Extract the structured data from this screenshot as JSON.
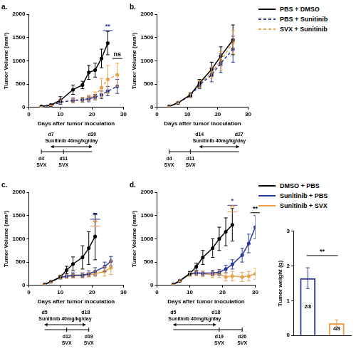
{
  "chart_data": [
    {
      "type": "line",
      "title": "a.",
      "x_label": "Days after tumor inoculation",
      "y_label": "Tumor Volume (mm³)",
      "x": [
        4,
        7,
        10,
        14,
        17,
        19,
        21,
        23,
        25,
        28
      ],
      "series": [
        {
          "name": "PBS + DMSO",
          "color": "#000000",
          "line_style": "solid",
          "marker": "circle",
          "values": [
            20,
            50,
            150,
            380,
            480,
            750,
            800,
            1050,
            1380,
            null
          ],
          "errors": [
            5,
            20,
            80,
            100,
            80,
            150,
            150,
            200,
            250,
            null
          ]
        },
        {
          "name": "PBS + Sunitinib",
          "color": "#2b3a9e",
          "line_style": "dashed",
          "marker": "circle",
          "values": [
            10,
            40,
            110,
            150,
            160,
            180,
            220,
            270,
            350,
            450
          ],
          "errors": [
            5,
            10,
            40,
            50,
            50,
            60,
            60,
            80,
            100,
            150
          ]
        },
        {
          "name": "SVX + Sunitinib",
          "color": "#e8a04a",
          "line_style": "dashed",
          "marker": "circle",
          "values": [
            10,
            40,
            120,
            140,
            170,
            200,
            250,
            420,
            600,
            700
          ],
          "errors": [
            5,
            10,
            40,
            40,
            50,
            60,
            80,
            200,
            300,
            250
          ]
        }
      ],
      "xlim": [
        0,
        30
      ],
      "xticks": [
        0,
        10,
        20,
        30
      ],
      "ylim": [
        0,
        2000
      ],
      "yticks": [
        0,
        500,
        1000,
        1500,
        2000
      ],
      "grid": false,
      "legend": "upper right",
      "annotations": [
        {
          "text": "**",
          "x": 25,
          "y": 1650,
          "color": "#2b3a9e"
        },
        {
          "text": "ns",
          "x": 28,
          "y": 1050,
          "color": "#000000"
        }
      ],
      "timeline": {
        "treatment": {
          "label": "Sunitinib 40mg/kg/day",
          "start": {
            "day": 7,
            "label": "d7"
          },
          "end": {
            "day": 20,
            "label": "d20"
          }
        },
        "doses": [
          {
            "day": 4,
            "label": "d4",
            "text": "SVX"
          },
          {
            "day": 11,
            "label": "d11",
            "text": "SVX"
          }
        ]
      }
    },
    {
      "type": "line",
      "title": "b.",
      "x_label": "Days after tumor inoculation",
      "y_label": "Tumor Volume (mm³)",
      "x": [
        4,
        7,
        11,
        14,
        18,
        21,
        25
      ],
      "series": [
        {
          "name": "PBS + DMSO",
          "color": "#000000",
          "line_style": "solid",
          "marker": "circle",
          "values": [
            20,
            100,
            270,
            520,
            820,
            1100,
            1450
          ],
          "errors": [
            5,
            20,
            40,
            80,
            150,
            200,
            320
          ]
        },
        {
          "name": "PBS + Sunitinib",
          "color": "#2b3a9e",
          "line_style": "dashed",
          "marker": "circle",
          "values": [
            20,
            100,
            250,
            480,
            700,
            950,
            1250
          ],
          "errors": [
            5,
            20,
            40,
            80,
            150,
            200,
            280
          ]
        },
        {
          "name": "SVX + Sunitinib",
          "color": "#e8a04a",
          "line_style": "dashed",
          "marker": "circle",
          "values": [
            20,
            100,
            250,
            500,
            750,
            1000,
            1400
          ],
          "errors": [
            5,
            20,
            40,
            80,
            120,
            200,
            250
          ]
        }
      ],
      "xlim": [
        0,
        30
      ],
      "xticks": [
        0,
        10,
        20,
        30
      ],
      "ylim": [
        0,
        2000
      ],
      "yticks": [
        0,
        500,
        1000,
        1500,
        2000
      ],
      "grid": false,
      "timeline": {
        "treatment": {
          "label": "Sunitinib 40mg/kg/day",
          "start": {
            "day": 14,
            "label": "d14"
          },
          "end": {
            "day": 27,
            "label": "d27"
          }
        },
        "doses": [
          {
            "day": 4,
            "label": "d4",
            "text": "SVX"
          },
          {
            "day": 11,
            "label": "d11",
            "text": "SVX"
          }
        ]
      }
    },
    {
      "type": "line",
      "title": "c.",
      "x_label": "Days after tumor inoculation",
      "y_label": "Tumor Volume (mm³)",
      "x": [
        5,
        7,
        10,
        12,
        14,
        17,
        19,
        21,
        24,
        26
      ],
      "series": [
        {
          "name": "DMSO + PBS",
          "color": "#000000",
          "line_style": "solid",
          "marker": "circle",
          "values": [
            20,
            80,
            180,
            330,
            460,
            600,
            800,
            1050,
            null,
            null
          ],
          "errors": [
            5,
            20,
            40,
            80,
            150,
            250,
            350,
            500,
            null,
            null
          ]
        },
        {
          "name": "Sunitinib + PBS",
          "color": "#2b3a9e",
          "line_style": "solid",
          "marker": "circle",
          "values": [
            20,
            80,
            170,
            200,
            220,
            220,
            250,
            300,
            400,
            520
          ],
          "errors": [
            5,
            20,
            30,
            40,
            50,
            50,
            60,
            80,
            100,
            100
          ]
        },
        {
          "name": "Sunitinib + SVX",
          "color": "#e8a04a",
          "line_style": "solid",
          "marker": "circle",
          "values": [
            20,
            80,
            170,
            190,
            200,
            210,
            230,
            250,
            300,
            380
          ],
          "errors": [
            5,
            20,
            30,
            40,
            40,
            50,
            50,
            60,
            100,
            150
          ]
        }
      ],
      "xlim": [
        0,
        30
      ],
      "xticks": [
        0,
        10,
        20,
        30
      ],
      "ylim": [
        0,
        2000
      ],
      "yticks": [
        0,
        500,
        1000,
        1500,
        2000
      ],
      "grid": false,
      "legend": "upper right",
      "annotations": [
        {
          "text": "**",
          "x": 21,
          "y": 1420,
          "color": "#2b3a9e"
        },
        {
          "text": "**",
          "x": 21,
          "y": 1270,
          "color": "#e8a04a"
        }
      ],
      "timeline": {
        "treatment": {
          "label": "Sunitinib 40mg/kg/day",
          "start": {
            "day": 5,
            "label": "d5"
          },
          "end": {
            "day": 18,
            "label": "d18"
          }
        },
        "doses": [
          {
            "day": 12,
            "label": "d12",
            "text": "SVX"
          },
          {
            "day": 19,
            "label": "d19",
            "text": "SVX"
          }
        ]
      }
    },
    {
      "type": "line",
      "title": "d.",
      "x_label": "Days after tumor inoculation",
      "y_label": "Tumor Volume (mm³)",
      "x": [
        5,
        7,
        10,
        12,
        14,
        17,
        19,
        21,
        23,
        26,
        28,
        30
      ],
      "series": [
        {
          "name": "DMSO + PBS",
          "color": "#000000",
          "line_style": "solid",
          "marker": "circle",
          "values": [
            20,
            100,
            250,
            400,
            600,
            800,
            1000,
            1150,
            1300,
            null,
            null,
            null
          ],
          "errors": [
            5,
            20,
            50,
            80,
            150,
            200,
            250,
            300,
            350,
            null,
            null,
            null
          ]
        },
        {
          "name": "Sunitinib + PBS",
          "color": "#2b3a9e",
          "line_style": "solid",
          "marker": "circle",
          "values": [
            20,
            100,
            250,
            270,
            260,
            270,
            280,
            350,
            450,
            650,
            900,
            1250
          ],
          "errors": [
            5,
            20,
            40,
            50,
            50,
            50,
            60,
            80,
            100,
            150,
            200,
            250
          ]
        },
        {
          "name": "Sunitinib + SVX",
          "color": "#e8a04a",
          "line_style": "solid",
          "marker": "circle",
          "values": [
            20,
            100,
            240,
            260,
            250,
            230,
            250,
            180,
            200,
            180,
            200,
            250
          ],
          "errors": [
            5,
            20,
            40,
            50,
            60,
            60,
            80,
            80,
            100,
            100,
            100,
            120
          ]
        }
      ],
      "xlim": [
        0,
        30
      ],
      "xticks": [
        0,
        10,
        20,
        30
      ],
      "ylim": [
        0,
        2000
      ],
      "yticks": [
        0,
        500,
        1000,
        1500,
        2000
      ],
      "grid": false,
      "annotations": [
        {
          "text": "*",
          "x": 23,
          "y": 1720,
          "color": "#2b3a9e"
        },
        {
          "text": "**",
          "x": 23,
          "y": 1580,
          "color": "#e8a04a"
        },
        {
          "text": "**",
          "x": 30,
          "y": 1560,
          "color": "#000000"
        }
      ],
      "timeline": {
        "treatment": {
          "label": "Sunitinib 40mg/kg/day",
          "start": {
            "day": 5,
            "label": "d5"
          },
          "end": {
            "day": 18,
            "label": "d18"
          }
        },
        "doses": [
          {
            "day": 19,
            "label": "d19",
            "text": "SVX"
          },
          {
            "day": 26,
            "label": "d26",
            "text": "SVX"
          }
        ]
      }
    },
    {
      "type": "bar",
      "y_label": "Tumor weight (g)",
      "categories": [
        null,
        null
      ],
      "values": [
        1.65,
        0.35
      ],
      "errors": [
        0.3,
        0.1
      ],
      "colors": [
        "#2b3a9e",
        "#e8a04a"
      ],
      "bar_texts": [
        "2/8",
        "4/8"
      ],
      "ylim": [
        0,
        3
      ],
      "yticks": [
        0,
        1,
        2,
        3
      ],
      "grid": false,
      "tick_labels": "y",
      "annotations": [
        {
          "text": "**",
          "x": 0.5,
          "y": 2.3,
          "color": "#000000"
        }
      ]
    }
  ]
}
